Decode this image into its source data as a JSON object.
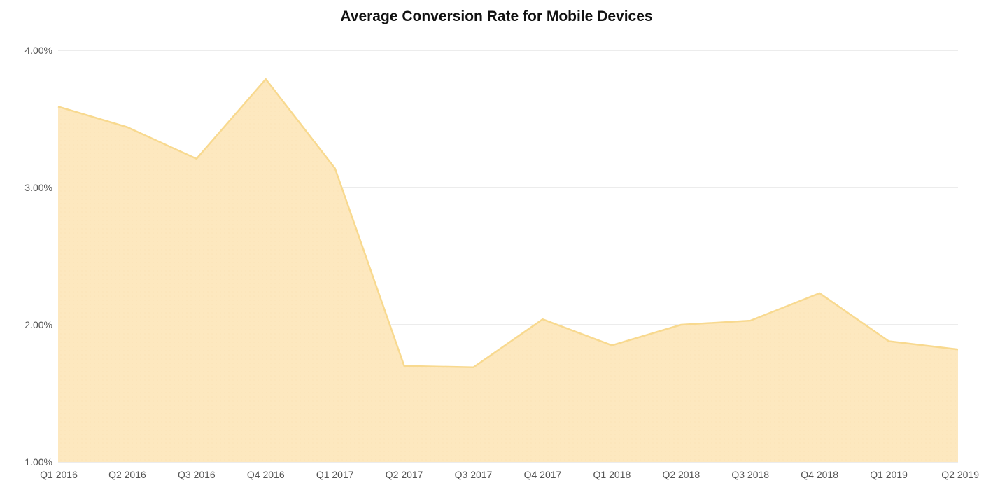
{
  "chart_data": {
    "type": "area",
    "title": "Average Conversion Rate for Mobile Devices",
    "xlabel": "",
    "ylabel": "",
    "categories": [
      "Q1 2016",
      "Q2 2016",
      "Q3 2016",
      "Q4 2016",
      "Q1 2017",
      "Q2 2017",
      "Q3 2017",
      "Q4 2017",
      "Q1 2018",
      "Q2 2018",
      "Q3 2018",
      "Q4 2018",
      "Q1 2019",
      "Q2 2019"
    ],
    "values": [
      3.59,
      3.44,
      3.21,
      3.79,
      3.14,
      1.7,
      1.69,
      2.04,
      1.85,
      2.0,
      2.03,
      2.23,
      1.88,
      1.82
    ],
    "ylim": [
      1.0,
      4.0
    ],
    "yticks": [
      1.0,
      2.0,
      3.0,
      4.0
    ],
    "ytick_labels": [
      "1.00%",
      "2.00%",
      "3.00%",
      "4.00%"
    ],
    "grid": true,
    "legend": "none",
    "colors": {
      "fill": "#fde8bf",
      "line": "#f8d98f",
      "grid": "#d9d9d9"
    }
  }
}
